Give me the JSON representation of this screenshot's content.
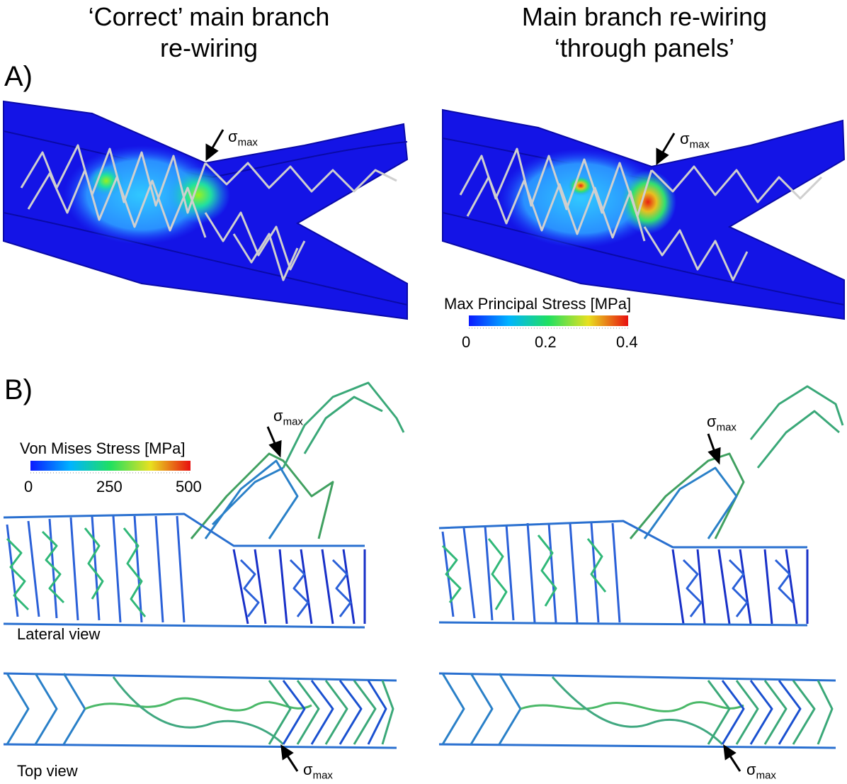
{
  "titles": {
    "left": "‘Correct’ main branch\nre-wiring",
    "right": "Main branch re-wiring\n‘through panels’"
  },
  "panel_labels": {
    "a": "A)",
    "b": "B)"
  },
  "sigma": {
    "symbol": "σ",
    "subscript": "max"
  },
  "colorbar_a": {
    "title": "Max Principal Stress [MPa]",
    "ticks": [
      "0",
      "0.2",
      "0.4"
    ]
  },
  "colorbar_b": {
    "title": "Von Mises Stress [MPa]",
    "ticks": [
      "0",
      "250",
      "500"
    ]
  },
  "views": {
    "lateral": "Lateral view",
    "top": "Top view"
  },
  "colors": {
    "vessel": "#1414e6",
    "vessel_edge": "#0a0aa8",
    "strut_a": "#c8c8c8"
  }
}
